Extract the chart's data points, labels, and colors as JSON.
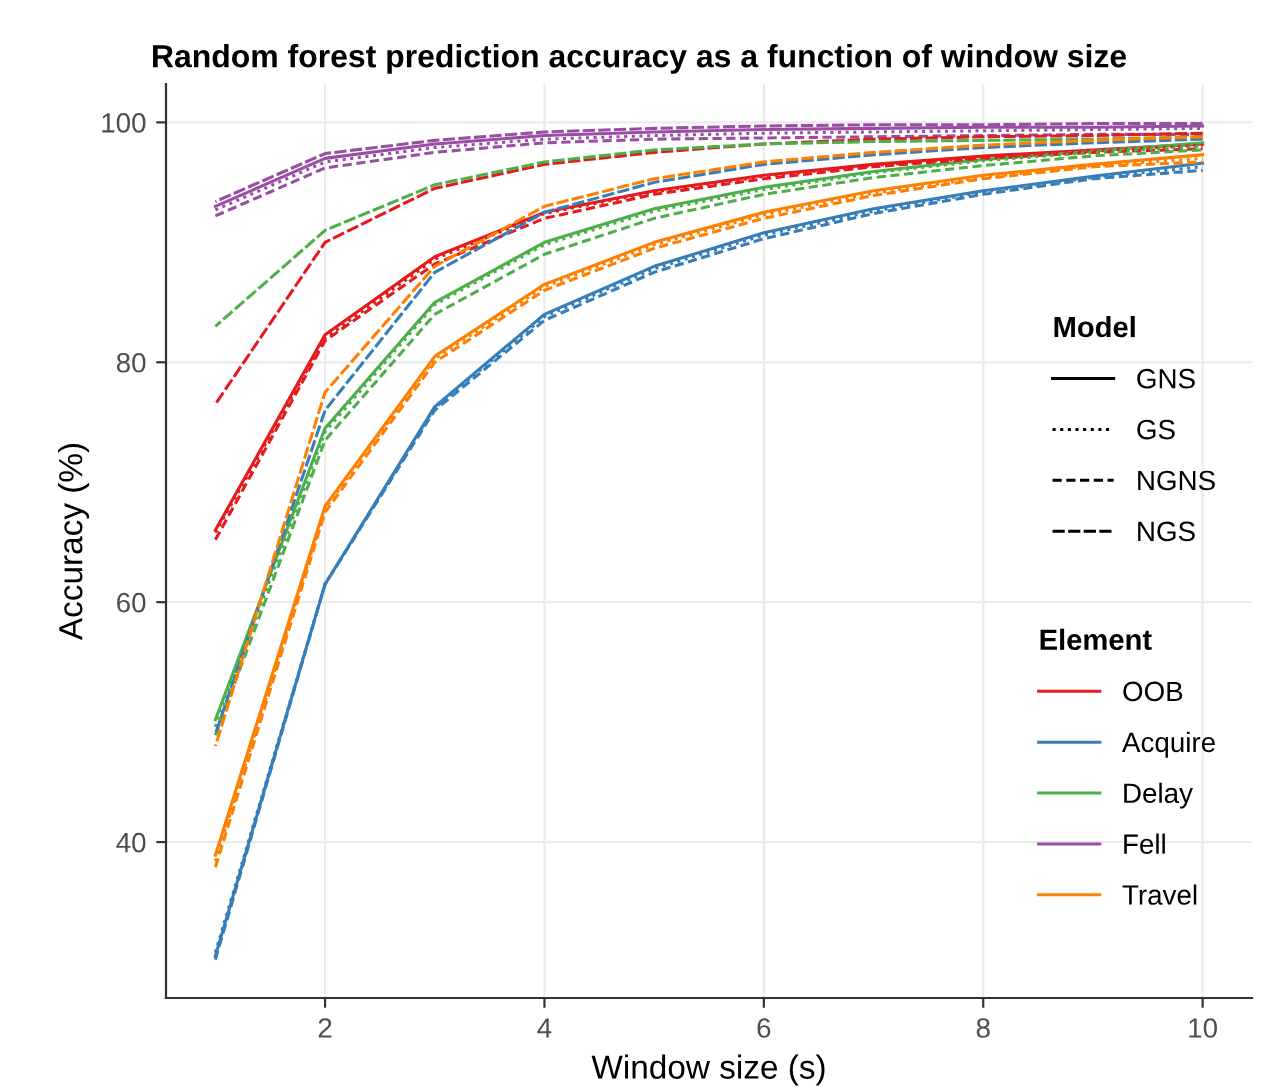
{
  "chart_data": {
    "type": "line",
    "title": "Random forest prediction accuracy as a function of window size",
    "xlabel": "Window size (s)",
    "ylabel": "Accuracy (%)",
    "x": [
      1,
      2,
      3,
      4,
      5,
      6,
      7,
      8,
      9,
      10
    ],
    "xlim": [
      0.55,
      10.45
    ],
    "xticks": [
      2,
      4,
      6,
      8,
      10
    ],
    "ylim": [
      27,
      103.2
    ],
    "yticks": [
      40,
      60,
      80,
      100
    ],
    "grid": true,
    "legend": "right",
    "legend_title": [
      "Model",
      "Element"
    ],
    "annotations": [
      "GNS",
      "GS",
      "NGNS",
      "NGS"
    ],
    "series": [
      {
        "name": "OOB",
        "line_style": "solid",
        "color": "#e41a1c",
        "values": [
          66,
          82.3,
          88.8,
          92.5,
          94.3,
          95.6,
          96.5,
          97.2,
          97.7,
          98.2
        ]
      },
      {
        "line_style": "dotted",
        "color": "#e41a1c",
        "values": [
          65.8,
          82,
          88.6,
          92.4,
          94.2,
          95.5,
          96.4,
          97.1,
          97.6,
          98.1
        ]
      },
      {
        "line_style": "dashed",
        "color": "#e41a1c",
        "values": [
          65.2,
          81.8,
          88.2,
          92,
          94,
          95.3,
          96.3,
          97,
          97.5,
          97.8
        ]
      },
      {
        "line_style": "longdash",
        "color": "#e41a1c",
        "values": [
          76.5,
          90,
          94.5,
          96.5,
          97.5,
          98.2,
          98.6,
          98.8,
          98.9,
          99.1
        ]
      },
      {
        "name": "Acquire",
        "line_style": "solid",
        "color": "#377eb8",
        "values": [
          30.5,
          61.5,
          76.3,
          84,
          88,
          90.8,
          92.8,
          94.3,
          95.5,
          96.6
        ]
      },
      {
        "line_style": "dotted",
        "color": "#377eb8",
        "values": [
          30.8,
          61.5,
          76.2,
          83.8,
          87.8,
          90.6,
          92.6,
          94.2,
          95.4,
          96.3
        ]
      },
      {
        "line_style": "dashed",
        "color": "#377eb8",
        "values": [
          30.2,
          61.5,
          76,
          83.5,
          87.5,
          90.3,
          92.4,
          94,
          95.3,
          96
        ]
      },
      {
        "line_style": "longdash",
        "color": "#377eb8",
        "values": [
          49,
          76,
          87.5,
          92.5,
          95,
          96.5,
          97.3,
          97.9,
          98.3,
          98.6
        ]
      },
      {
        "name": "Delay",
        "line_style": "solid",
        "color": "#4daf4a",
        "values": [
          50.2,
          74.5,
          85,
          90,
          92.8,
          94.6,
          95.9,
          96.9,
          97.6,
          98.3
        ]
      },
      {
        "line_style": "dotted",
        "color": "#4daf4a",
        "values": [
          49.6,
          74.2,
          84.8,
          89.8,
          92.6,
          94.4,
          95.8,
          96.8,
          97.5,
          98
        ]
      },
      {
        "line_style": "dashed",
        "color": "#4daf4a",
        "values": [
          48.9,
          73.5,
          84,
          89,
          92,
          94,
          95.4,
          96.4,
          97.2,
          97.7
        ]
      },
      {
        "line_style": "longdash",
        "color": "#4daf4a",
        "values": [
          83,
          91,
          94.8,
          96.7,
          97.7,
          98.2,
          98.4,
          98.5,
          98.6,
          98.8
        ]
      },
      {
        "name": "Fell",
        "line_style": "solid",
        "color": "#984ea3",
        "values": [
          93,
          97,
          98.2,
          98.9,
          99.2,
          99.4,
          99.5,
          99.6,
          99.6,
          99.7
        ]
      },
      {
        "line_style": "dotted",
        "color": "#984ea3",
        "values": [
          92.7,
          96.7,
          97.9,
          98.6,
          98.9,
          99.1,
          99.2,
          99.3,
          99.4,
          99.5
        ]
      },
      {
        "line_style": "dashed",
        "color": "#984ea3",
        "values": [
          92.2,
          96.2,
          97.5,
          98.3,
          98.6,
          98.7,
          98.8,
          98.9,
          99,
          99
        ]
      },
      {
        "line_style": "longdash",
        "color": "#984ea3",
        "values": [
          93.4,
          97.4,
          98.5,
          99.2,
          99.5,
          99.7,
          99.8,
          99.8,
          99.9,
          99.9
        ]
      },
      {
        "name": "Travel",
        "line_style": "solid",
        "color": "#ff7f00",
        "values": [
          38.9,
          68,
          80.5,
          86.5,
          90,
          92.5,
          94.3,
          95.6,
          96.5,
          97.3
        ]
      },
      {
        "line_style": "dotted",
        "color": "#ff7f00",
        "values": [
          38.4,
          67.8,
          80.3,
          86.3,
          89.8,
          92.3,
          94.1,
          95.4,
          96.4,
          97
        ]
      },
      {
        "line_style": "dashed",
        "color": "#ff7f00",
        "values": [
          37.9,
          67.5,
          80,
          86,
          89.5,
          92,
          93.9,
          95.3,
          96.3,
          96.7
        ]
      },
      {
        "line_style": "longdash",
        "color": "#ff7f00",
        "values": [
          48,
          77.5,
          88,
          93,
          95.3,
          96.7,
          97.5,
          98.1,
          98.5,
          98.8
        ]
      }
    ]
  }
}
